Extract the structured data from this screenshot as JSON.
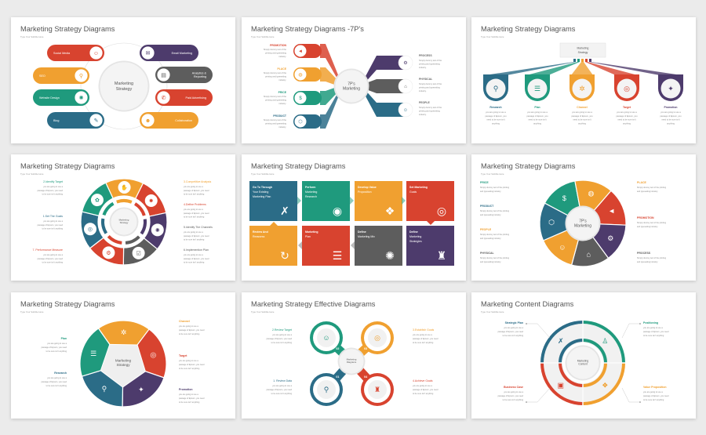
{
  "page": {
    "background": "#ebebeb"
  },
  "colors": {
    "red": "#d8432f",
    "orange": "#f0a030",
    "green": "#1f9a7d",
    "blue": "#2b6c87",
    "purple": "#4d3b6c",
    "gray": "#5d5d5d",
    "title": "#555555",
    "body": "#8a8a8a"
  },
  "subtitle": "Type Your Subtitle Here",
  "body_lines": [
    "you are going to use a",
    "passage of Epsum, you need",
    "to be sure isn't anything"
  ],
  "body_lines_4": [
    "you are going to use a",
    "passage of Epsum, you",
    "need to be sure isn't",
    "anything"
  ],
  "dummy_lines": [
    "Simply dummy text of the",
    "printing and typesetting",
    "industry."
  ],
  "dummy_lines_2": [
    "Simply dummy text of the printing",
    "and typesetting industry."
  ],
  "slides": [
    {
      "title": "Marketing Strategy Diagrams",
      "center": [
        "Marketing",
        "Strategy"
      ],
      "items": [
        {
          "lines": [
            "Social Media"
          ],
          "color": "red",
          "icon": "social-icon"
        },
        {
          "lines": [
            "SEO"
          ],
          "color": "orange",
          "icon": "seo-search-icon"
        },
        {
          "lines": [
            "Website Design"
          ],
          "color": "green",
          "icon": "network-icon"
        },
        {
          "lines": [
            "Blog"
          ],
          "color": "blue",
          "icon": "blog-icon"
        },
        {
          "lines": [
            "Email Marketing"
          ],
          "color": "purple",
          "icon": "email-icon"
        },
        {
          "lines": [
            "Analytics &",
            "Reporting"
          ],
          "color": "gray",
          "icon": "analytics-icon"
        },
        {
          "lines": [
            "Paid Advertising"
          ],
          "color": "red",
          "icon": "advertising-icon"
        },
        {
          "lines": [
            "Collaboration"
          ],
          "color": "orange",
          "icon": "collaboration-icon"
        }
      ]
    },
    {
      "title": "Marketing Strategy Diagrams -7P's",
      "center": [
        "7P's",
        "Marketing"
      ],
      "left": [
        {
          "label": "PROMOTION",
          "color": "red",
          "icon": "megaphone-icon"
        },
        {
          "label": "PLACE",
          "color": "orange",
          "icon": "globe-icon"
        },
        {
          "label": "PRICE",
          "color": "green",
          "icon": "price-icon"
        },
        {
          "label": "PRODUCT",
          "color": "blue",
          "icon": "product-icon"
        }
      ],
      "right": [
        {
          "label": "PROCESS",
          "color": "purple",
          "icon": "process-icon"
        },
        {
          "label": "PHYSICAL",
          "color": "gray",
          "icon": "physical-icon"
        },
        {
          "label": "PEOPLE",
          "color": "blue",
          "icon": "people-icon"
        }
      ]
    },
    {
      "title": "Marketing Strategy Diagrams",
      "center": [
        "Marketing",
        "Strategy"
      ],
      "items": [
        {
          "label": "Research",
          "color": "blue",
          "icon": "research-icon"
        },
        {
          "label": "Plan",
          "color": "green",
          "icon": "plan-icon"
        },
        {
          "label": "Channel",
          "color": "orange",
          "icon": "channel-icon"
        },
        {
          "label": "Target",
          "color": "red",
          "icon": "target-icon"
        },
        {
          "label": "Promotion",
          "color": "purple",
          "icon": "promotion-icon"
        }
      ]
    },
    {
      "title": "Marketing Strategy Diagrams",
      "center": [
        "Marketing",
        "Strategy"
      ],
      "left": [
        {
          "label": "2.Identify Target",
          "color": "green"
        },
        {
          "label": "1.Set The Goals",
          "color": "blue"
        },
        {
          "label": "7. Performance Measure",
          "color": "red"
        }
      ],
      "right": [
        {
          "label": "3.Competitive Analysis",
          "color": "orange"
        },
        {
          "label": "4.Define Problems",
          "color": "red"
        },
        {
          "label": "5.Identify The Channels",
          "color": "gray"
        },
        {
          "label": "6.Implemention Plan",
          "color": "gray"
        }
      ],
      "segments": [
        {
          "color": "orange",
          "icon": "handshake-icon"
        },
        {
          "color": "red",
          "icon": "idea-icon"
        },
        {
          "color": "purple",
          "icon": "network-icon"
        },
        {
          "color": "gray",
          "icon": "checklist-icon"
        },
        {
          "color": "red",
          "icon": "gear-icon"
        },
        {
          "color": "blue",
          "icon": "target-icon"
        },
        {
          "color": "green",
          "icon": "settings-icon"
        }
      ]
    },
    {
      "title": "Marketing Strategy Diagrams",
      "tiles": [
        {
          "lines": [
            "Go To Through",
            "Your Existing",
            "Marketing Plan"
          ],
          "color": "blue",
          "icon": "strategy-icon"
        },
        {
          "lines": [
            "Perform",
            "Marketing",
            "Research"
          ],
          "color": "green",
          "icon": "eye-icon"
        },
        {
          "lines": [
            "Develop Value",
            "Proposition"
          ],
          "color": "orange",
          "icon": "value-icon"
        },
        {
          "lines": [
            "Set Marketing",
            "Goals"
          ],
          "color": "red",
          "icon": "target-icon"
        },
        {
          "lines": [
            "Define",
            "Marketing",
            "Strategies"
          ],
          "color": "purple",
          "icon": "strategy-tree-icon"
        },
        {
          "lines": [
            "Define",
            "Marketing Mix"
          ],
          "color": "gray",
          "icon": "network-icon"
        },
        {
          "lines": [
            "Marketing",
            "Plan"
          ],
          "color": "red",
          "icon": "plan-icon"
        },
        {
          "lines": [
            "Review And",
            "Reassess"
          ],
          "color": "orange",
          "icon": "refresh-icon"
        }
      ]
    },
    {
      "title": "Marketing Strategy Diagrams",
      "center": [
        "7P's",
        "Marketing"
      ],
      "left": [
        {
          "label": "PRICE",
          "color": "green"
        },
        {
          "label": "PRODUCT",
          "color": "blue"
        },
        {
          "label": "PEOPLE",
          "color": "orange"
        },
        {
          "label": "PHYSICAL",
          "color": "gray"
        }
      ],
      "right": [
        {
          "label": "PLACE",
          "color": "orange"
        },
        {
          "label": "PROMOTION",
          "color": "red"
        },
        {
          "label": "PROCESS",
          "color": "gray"
        }
      ],
      "segments": [
        {
          "color": "green",
          "icon": "price-icon"
        },
        {
          "color": "orange",
          "icon": "globe-icon"
        },
        {
          "color": "red",
          "icon": "megaphone-icon"
        },
        {
          "color": "purple",
          "icon": "process-icon"
        },
        {
          "color": "gray",
          "icon": "physical-icon"
        },
        {
          "color": "orange",
          "icon": "people-icon"
        },
        {
          "color": "blue",
          "icon": "product-icon"
        }
      ]
    },
    {
      "title": "Marketing Strategy Diagrams",
      "center": [
        "Marketing",
        "Strategy"
      ],
      "left": [
        {
          "label": "Plan",
          "color": "green"
        },
        {
          "label": "Research",
          "color": "blue"
        }
      ],
      "right": [
        {
          "label": "Channel",
          "color": "orange"
        },
        {
          "label": "Target",
          "color": "red"
        },
        {
          "label": "Promotion",
          "color": "purple"
        }
      ],
      "segments": [
        {
          "color": "orange",
          "icon": "channel-icon"
        },
        {
          "color": "red",
          "icon": "target-icon"
        },
        {
          "color": "purple",
          "icon": "promotion-icon"
        },
        {
          "color": "blue",
          "icon": "research-icon"
        },
        {
          "color": "green",
          "icon": "plan-icon"
        }
      ]
    },
    {
      "title": "Marketing Strategy Effective Diagrams",
      "center": [
        "Marketing",
        "Diagrams"
      ],
      "items": [
        {
          "label": "1. Review Data",
          "number": "01",
          "color": "blue",
          "icon": "research-icon"
        },
        {
          "label": "2.Review Target",
          "number": "02",
          "color": "green",
          "icon": "people-icon"
        },
        {
          "label": "3.Establish Goals",
          "number": "03",
          "color": "orange",
          "icon": "target-icon"
        },
        {
          "label": "4.Achieve Goals",
          "number": "04",
          "color": "red",
          "icon": "strategy-tree-icon"
        }
      ]
    },
    {
      "title": "Marketing Content Diagrams",
      "center": [
        "Marketing",
        "Content"
      ],
      "items": [
        {
          "label": "Strategic Plan",
          "color": "blue",
          "icon": "strategy-icon"
        },
        {
          "label": "Positioning",
          "color": "green",
          "icon": "podium-icon"
        },
        {
          "label": "Value Proposition",
          "color": "orange",
          "icon": "value-icon"
        },
        {
          "label": "Business Case",
          "color": "red",
          "icon": "briefcase-icon"
        }
      ]
    }
  ]
}
